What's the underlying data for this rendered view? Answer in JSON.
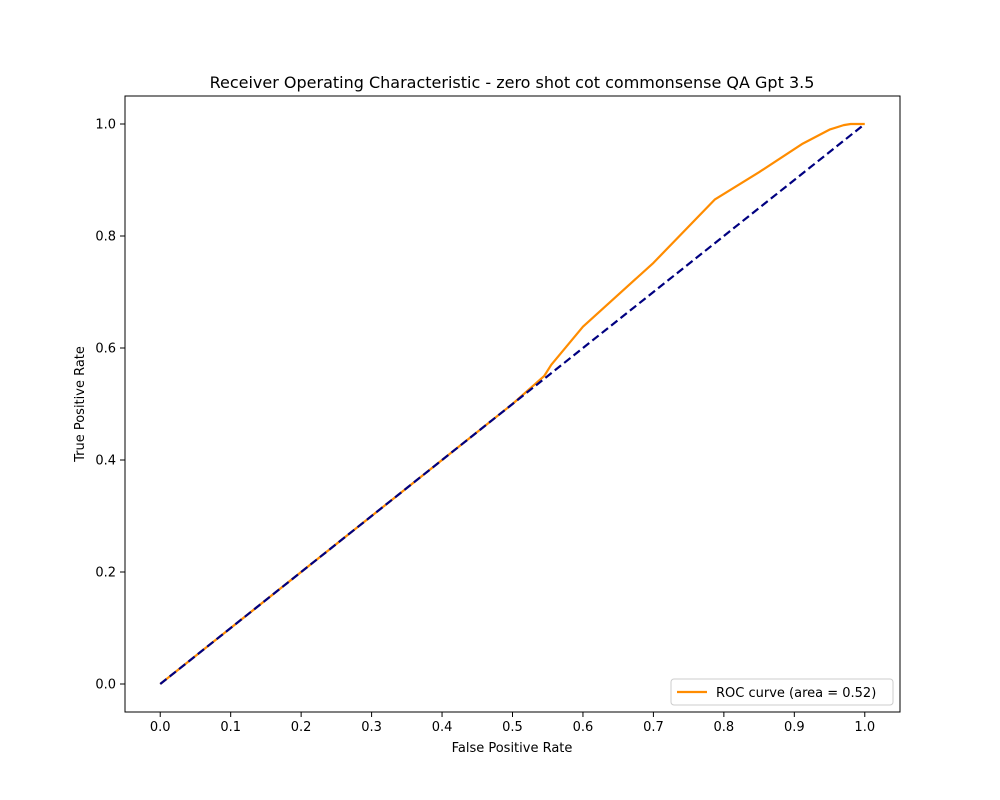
{
  "chart_data": {
    "type": "line",
    "title": "Receiver Operating Characteristic - zero shot cot commonsense QA Gpt 3.5",
    "xlabel": "False Positive Rate",
    "ylabel": "True Positive Rate",
    "xlim": [
      -0.05,
      1.05
    ],
    "ylim": [
      -0.05,
      1.05
    ],
    "xticks": [
      0.0,
      0.1,
      0.2,
      0.3,
      0.4,
      0.5,
      0.6,
      0.7,
      0.8,
      0.9,
      1.0
    ],
    "xtick_labels": [
      "0.0",
      "0.1",
      "0.2",
      "0.3",
      "0.4",
      "0.5",
      "0.6",
      "0.7",
      "0.8",
      "0.9",
      "1.0"
    ],
    "yticks": [
      0.0,
      0.2,
      0.4,
      0.6,
      0.8,
      1.0
    ],
    "ytick_labels": [
      "0.0",
      "0.2",
      "0.4",
      "0.6",
      "0.8",
      "1.0"
    ],
    "grid": false,
    "legend_position": "lower right",
    "series": [
      {
        "name": "ROC curve (area = 0.52)",
        "color": "#ff8c00",
        "style": "solid",
        "x": [
          0.0,
          0.1,
          0.2,
          0.3,
          0.4,
          0.5,
          0.545,
          0.555,
          0.6,
          0.7,
          0.787,
          0.85,
          0.912,
          0.95,
          0.97,
          0.98,
          0.99,
          1.0
        ],
        "y": [
          0.0,
          0.1,
          0.2,
          0.3,
          0.4,
          0.5,
          0.55,
          0.57,
          0.638,
          0.752,
          0.865,
          0.914,
          0.965,
          0.99,
          0.998,
          1.0,
          1.0,
          1.0
        ]
      },
      {
        "name": "",
        "color": "#000080",
        "style": "dashed",
        "x": [
          0.0,
          1.0
        ],
        "y": [
          0.0,
          1.0
        ]
      }
    ]
  }
}
